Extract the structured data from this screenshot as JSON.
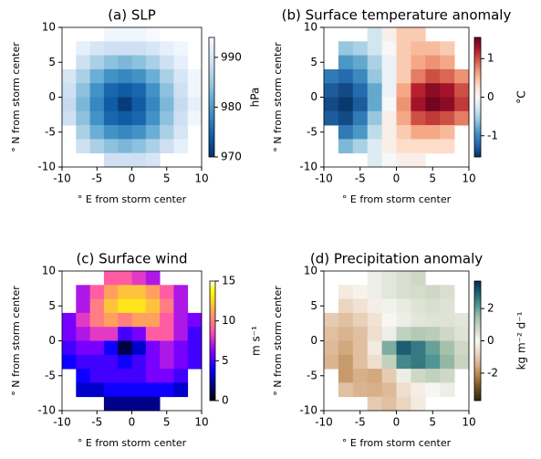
{
  "chart_data": [
    {
      "type": "heatmap",
      "title": "(a) SLP",
      "xlabel": "° E from storm center",
      "ylabel": "° N from storm center",
      "x": [
        -9,
        -7,
        -5,
        -3,
        -1,
        1,
        3,
        5,
        7,
        9
      ],
      "y": [
        9,
        7,
        5,
        3,
        1,
        -1,
        -3,
        -5,
        -7,
        -9
      ],
      "z": [
        [
          null,
          null,
          null,
          993,
          993,
          993,
          994,
          null,
          null,
          null
        ],
        [
          null,
          992,
          990,
          989,
          989,
          989,
          990,
          992,
          993,
          null
        ],
        [
          null,
          989,
          986,
          984,
          983,
          984,
          986,
          989,
          992,
          null
        ],
        [
          990,
          986,
          982,
          979,
          978,
          979,
          982,
          986,
          990,
          993
        ],
        [
          989,
          984,
          979,
          975,
          974,
          975,
          979,
          984,
          989,
          993
        ],
        [
          988,
          983,
          978,
          974,
          971,
          974,
          978,
          983,
          988,
          992
        ],
        [
          989,
          984,
          979,
          975,
          974,
          975,
          979,
          984,
          989,
          993
        ],
        [
          null,
          986,
          982,
          979,
          978,
          979,
          982,
          986,
          990,
          null
        ],
        [
          null,
          989,
          986,
          984,
          983,
          984,
          986,
          989,
          992,
          null
        ],
        [
          null,
          null,
          null,
          989,
          989,
          989,
          990,
          null,
          null,
          null
        ]
      ],
      "xlim": [
        -10,
        10
      ],
      "ylim": [
        -10,
        10
      ],
      "xticks": [
        -10,
        -5,
        0,
        5,
        10
      ],
      "yticks": [
        -10,
        -5,
        0,
        5,
        10
      ],
      "colormap": "Blues_r",
      "colorbar": {
        "label": "hPa",
        "lim": [
          970,
          994
        ],
        "ticks": [
          970,
          980,
          990
        ]
      }
    },
    {
      "type": "heatmap",
      "title": "(b) Surface temperature anomaly",
      "xlabel": "° E from storm center",
      "ylabel": "° N from storm center",
      "x": [
        -9,
        -7,
        -5,
        -3,
        -1,
        1,
        3,
        5,
        7,
        9
      ],
      "y": [
        9,
        7,
        5,
        3,
        1,
        -1,
        -3,
        -5,
        -7,
        -9
      ],
      "z": [
        [
          null,
          null,
          null,
          -0.3,
          0.1,
          0.4,
          0.4,
          null,
          null,
          null
        ],
        [
          null,
          -0.6,
          -0.5,
          -0.3,
          0.0,
          0.4,
          0.5,
          0.5,
          0.4,
          null
        ],
        [
          null,
          -0.9,
          -0.8,
          -0.5,
          -0.1,
          0.4,
          0.6,
          0.7,
          0.6,
          null
        ],
        [
          -1.1,
          -1.2,
          -1.0,
          -0.6,
          -0.1,
          0.4,
          0.8,
          1.0,
          0.9,
          0.7
        ],
        [
          -1.3,
          -1.4,
          -1.2,
          -0.8,
          -0.1,
          0.6,
          1.2,
          1.4,
          1.3,
          1.0
        ],
        [
          -1.4,
          -1.5,
          -1.3,
          -0.8,
          0.0,
          0.7,
          1.3,
          1.5,
          1.4,
          1.1
        ],
        [
          -1.3,
          -1.4,
          -1.1,
          -0.6,
          0.1,
          0.6,
          1.0,
          1.1,
          1.0,
          0.8
        ],
        [
          null,
          -1.1,
          -0.9,
          -0.4,
          0.1,
          0.4,
          0.6,
          0.6,
          0.5,
          null
        ],
        [
          null,
          -0.7,
          -0.5,
          -0.2,
          0.1,
          0.3,
          0.3,
          0.3,
          0.3,
          null
        ],
        [
          null,
          null,
          null,
          -0.2,
          0.0,
          0.1,
          0.1,
          null,
          null,
          null
        ]
      ],
      "xlim": [
        -10,
        10
      ],
      "ylim": [
        -10,
        10
      ],
      "xticks": [
        -10,
        -5,
        0,
        5,
        10
      ],
      "yticks": [
        -10,
        -5,
        0,
        5,
        10
      ],
      "colormap": "RdBu_r",
      "colorbar": {
        "label": "°C",
        "lim": [
          -1.55,
          1.55
        ],
        "ticks": [
          -1,
          0,
          1
        ]
      }
    },
    {
      "type": "heatmap",
      "title": "(c) Surface wind",
      "xlabel": "° E from storm center",
      "ylabel": "° N from storm center",
      "x": [
        -9,
        -7,
        -5,
        -3,
        -1,
        1,
        3,
        5,
        7,
        9
      ],
      "y": [
        9,
        7,
        5,
        3,
        1,
        -1,
        -3,
        -5,
        -7,
        -9
      ],
      "z": [
        [
          null,
          null,
          null,
          9,
          9,
          8,
          7,
          null,
          null,
          null
        ],
        [
          null,
          7,
          9,
          11,
          12,
          12,
          11,
          9,
          7,
          null
        ],
        [
          null,
          7,
          10,
          12,
          13,
          13,
          12,
          10,
          7,
          null
        ],
        [
          6,
          8,
          10,
          11,
          10,
          11,
          11,
          9,
          7,
          6
        ],
        [
          6,
          7,
          8,
          8,
          5,
          6,
          9,
          9,
          7,
          5
        ],
        [
          5,
          6,
          6,
          4,
          1,
          3,
          6,
          7,
          6,
          5
        ],
        [
          4,
          5,
          5,
          5,
          4,
          5,
          6,
          7,
          6,
          5
        ],
        [
          null,
          4,
          5,
          5,
          5,
          5,
          6,
          6,
          5,
          null
        ],
        [
          null,
          3,
          3,
          4,
          4,
          4,
          4,
          4,
          3,
          null
        ],
        [
          null,
          null,
          null,
          2,
          2,
          2,
          2,
          null,
          null,
          null
        ]
      ],
      "xlim": [
        -10,
        10
      ],
      "ylim": [
        -10,
        10
      ],
      "xticks": [
        -10,
        -5,
        0,
        5,
        10
      ],
      "yticks": [
        -10,
        -5,
        0,
        5,
        10
      ],
      "colormap": "gnuplot2",
      "colorbar": {
        "label": "m s⁻¹",
        "lim": [
          0,
          15
        ],
        "ticks": [
          0,
          5,
          10,
          15
        ]
      }
    },
    {
      "type": "heatmap",
      "title": "(d) Precipitation anomaly",
      "xlabel": "° E from storm center",
      "ylabel": "° N from storm center",
      "x": [
        -9,
        -7,
        -5,
        -3,
        -1,
        1,
        3,
        5,
        7,
        9
      ],
      "y": [
        9,
        7,
        5,
        3,
        1,
        -1,
        -3,
        -5,
        -7,
        -9
      ],
      "z": [
        [
          null,
          null,
          null,
          0.2,
          0.4,
          0.6,
          0.8,
          null,
          null,
          null
        ],
        [
          null,
          -0.3,
          -0.1,
          0.2,
          0.4,
          0.6,
          0.7,
          0.8,
          0.6,
          null
        ],
        [
          null,
          -0.8,
          -0.5,
          -0.2,
          0.1,
          0.3,
          0.5,
          0.6,
          0.5,
          null
        ],
        [
          -1.0,
          -1.2,
          -0.9,
          -0.5,
          0.0,
          0.2,
          0.4,
          0.5,
          0.5,
          0.4
        ],
        [
          -1.2,
          -1.4,
          -1.2,
          -0.6,
          0.2,
          1.0,
          1.2,
          1.1,
          0.8,
          0.5
        ],
        [
          -1.3,
          -1.6,
          -1.2,
          -0.3,
          1.8,
          3.0,
          2.6,
          2.0,
          1.4,
          0.8
        ],
        [
          -1.4,
          -1.8,
          -1.2,
          -0.6,
          1.0,
          2.4,
          2.6,
          2.2,
          1.6,
          0.9
        ],
        [
          null,
          -1.8,
          -1.5,
          -1.6,
          -1.0,
          0.2,
          0.8,
          1.0,
          0.8,
          null
        ],
        [
          null,
          -1.2,
          -1.4,
          -1.5,
          -1.3,
          -0.6,
          -0.2,
          0.0,
          0.2,
          null
        ],
        [
          null,
          null,
          null,
          -1.0,
          -1.2,
          -0.8,
          -0.3,
          null,
          null,
          null
        ]
      ],
      "xlim": [
        -10,
        10
      ],
      "ylim": [
        -10,
        10
      ],
      "xticks": [
        -10,
        -5,
        0,
        5,
        10
      ],
      "yticks": [
        -10,
        -5,
        0,
        5,
        10
      ],
      "colormap": "tarn",
      "colorbar": {
        "label": "kg m⁻² d⁻¹",
        "lim": [
          -3.7,
          3.7
        ],
        "ticks": [
          -2,
          0,
          2
        ]
      }
    }
  ]
}
